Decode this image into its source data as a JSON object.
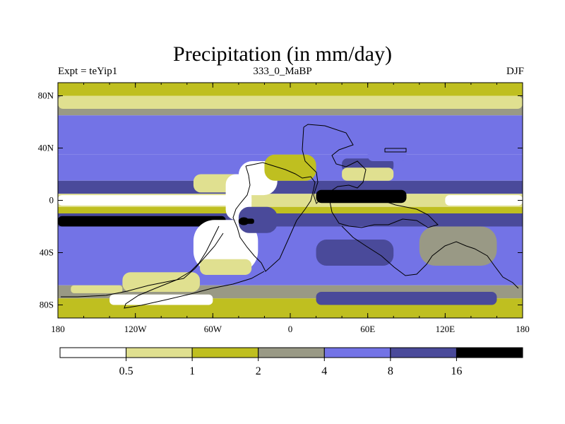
{
  "chart_data": {
    "type": "heatmap",
    "title": "Precipitation (in mm/day)",
    "left_label": "Expt = teYip1",
    "center_label": "333_0_MaBP",
    "right_label": "DJF",
    "xlim": [
      -180,
      180
    ],
    "ylim": [
      -90,
      90
    ],
    "x_ticks": [
      {
        "value": -180,
        "label": "180"
      },
      {
        "value": -120,
        "label": "120W"
      },
      {
        "value": -60,
        "label": "60W"
      },
      {
        "value": 0,
        "label": "0"
      },
      {
        "value": 60,
        "label": "60E"
      },
      {
        "value": 120,
        "label": "120E"
      },
      {
        "value": 180,
        "label": "180"
      }
    ],
    "y_ticks": [
      {
        "value": 80,
        "label": "80N"
      },
      {
        "value": 40,
        "label": "40N"
      },
      {
        "value": 0,
        "label": "0"
      },
      {
        "value": -40,
        "label": "40S"
      },
      {
        "value": -80,
        "label": "80S"
      }
    ],
    "colorbar": {
      "levels": [
        "0.5",
        "1",
        "2",
        "4",
        "8",
        "16"
      ],
      "colors": [
        "#ffffff",
        "#e0e090",
        "#bfbf20",
        "#999985",
        "#7373e6",
        "#4a4a9a",
        "#000000"
      ]
    },
    "bands": [
      {
        "lat": [
          80,
          90
        ],
        "level": 2
      },
      {
        "lat": [
          65,
          80
        ],
        "level": 3
      },
      {
        "lat": [
          35,
          65
        ],
        "level": 4
      },
      {
        "lat": [
          15,
          35
        ],
        "level": 4
      },
      {
        "lat": [
          5,
          15
        ],
        "level": 5
      },
      {
        "lat": [
          -5,
          5
        ],
        "level": 1
      },
      {
        "lat": [
          -10,
          -5
        ],
        "level": 2
      },
      {
        "lat": [
          -20,
          -10
        ],
        "level": 5
      },
      {
        "lat": [
          -40,
          -20
        ],
        "level": 4
      },
      {
        "lat": [
          -65,
          -40
        ],
        "level": 4
      },
      {
        "lat": [
          -75,
          -65
        ],
        "level": 3
      },
      {
        "lat": [
          -90,
          -75
        ],
        "level": 2
      }
    ],
    "patches": [
      {
        "lon": -180,
        "lat": 80,
        "w": 360,
        "h": 10,
        "level": 1
      },
      {
        "lon": -180,
        "lat": 14,
        "w": 160,
        "h": 7,
        "level": 5
      },
      {
        "lon": 60,
        "lat": 14,
        "w": 120,
        "h": 7,
        "level": 5
      },
      {
        "lon": -180,
        "lat": 4,
        "w": 150,
        "h": 8,
        "level": 0
      },
      {
        "lon": 120,
        "lat": 4,
        "w": 60,
        "h": 8,
        "level": 0
      },
      {
        "lon": 20,
        "lat": 8,
        "w": 70,
        "h": 10,
        "level": 6
      },
      {
        "lon": -180,
        "lat": -12,
        "w": 130,
        "h": 8,
        "level": 6
      },
      {
        "lon": -40,
        "lat": 30,
        "w": 30,
        "h": 26,
        "level": 0
      },
      {
        "lon": -75,
        "lat": 20,
        "w": 40,
        "h": 14,
        "level": 1
      },
      {
        "lon": -50,
        "lat": 20,
        "w": 20,
        "h": 35,
        "level": 0
      },
      {
        "lon": 40,
        "lat": 32,
        "w": 40,
        "h": 10,
        "level": 5
      },
      {
        "lon": -75,
        "lat": -15,
        "w": 50,
        "h": 40,
        "level": 0
      },
      {
        "lon": -70,
        "lat": -45,
        "w": 40,
        "h": 12,
        "level": 1
      },
      {
        "lon": -130,
        "lat": -55,
        "w": 60,
        "h": 15,
        "level": 1
      },
      {
        "lon": -140,
        "lat": -72,
        "w": 80,
        "h": 8,
        "level": 0
      },
      {
        "lon": 20,
        "lat": -30,
        "w": 60,
        "h": 20,
        "level": 5
      },
      {
        "lon": 100,
        "lat": -20,
        "w": 60,
        "h": 30,
        "level": 3
      },
      {
        "lon": 20,
        "lat": -70,
        "w": 140,
        "h": 10,
        "level": 5
      },
      {
        "lon": -40,
        "lat": -5,
        "w": 30,
        "h": 20,
        "level": 5
      },
      {
        "lon": -40,
        "lat": -14,
        "w": 12,
        "h": 4,
        "level": 6
      },
      {
        "lon": -20,
        "lat": 35,
        "w": 40,
        "h": 20,
        "level": 2
      },
      {
        "lon": 60,
        "lat": 40,
        "w": 30,
        "h": 10,
        "level": 4
      },
      {
        "lon": 40,
        "lat": 25,
        "w": 40,
        "h": 10,
        "level": 1
      },
      {
        "lon": -170,
        "lat": -65,
        "w": 40,
        "h": 6,
        "level": 1
      }
    ],
    "blobs": [
      {
        "lon": -36,
        "lat": -16,
        "rx": 4,
        "ry": 3,
        "level": 6
      }
    ]
  }
}
